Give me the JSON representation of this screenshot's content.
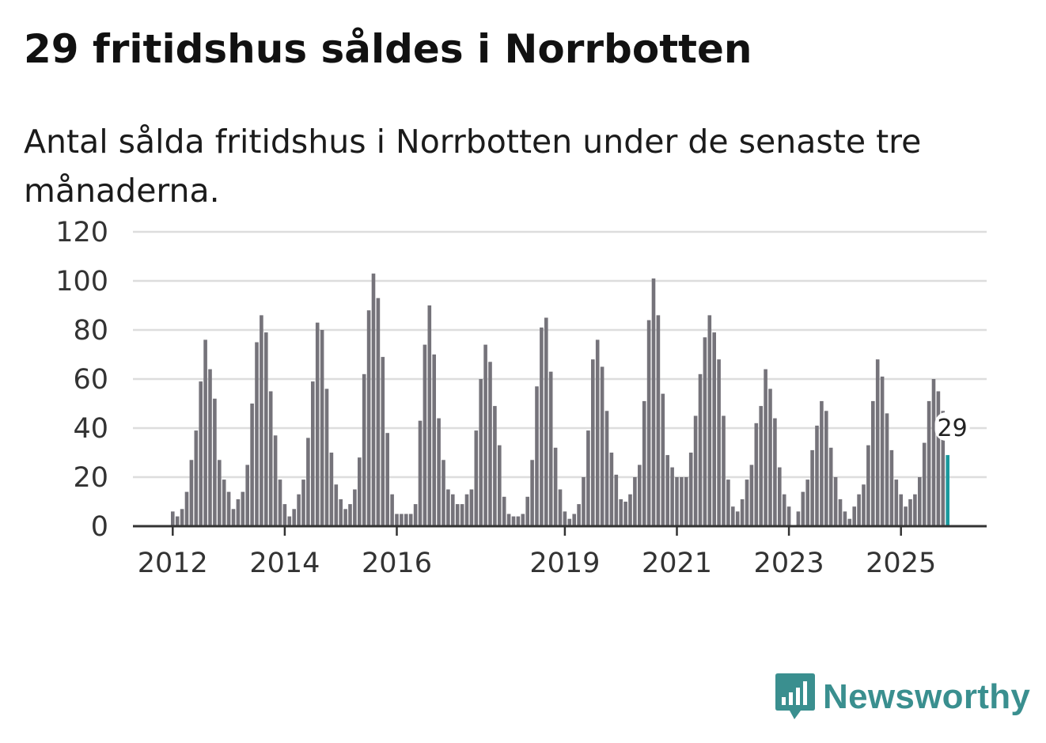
{
  "title": "29 fritidshus såldes i Norrbotten",
  "subtitle": "Antal sålda fritidshus i Norrbotten under de senaste tre månaderna.",
  "brand": {
    "name": "Newsworthy"
  },
  "colors": {
    "bar": "#75737a",
    "highlight": "#1a9a9e",
    "grid": "#dddddd",
    "axis": "#333333",
    "brand": "#3a8f8f"
  },
  "chart_data": {
    "type": "bar",
    "title": "29 fritidshus såldes i Norrbotten",
    "subtitle": "Antal sålda fritidshus i Norrbotten under de senaste tre månaderna.",
    "xlabel": "",
    "ylabel": "",
    "ylim": [
      0,
      120
    ],
    "y_ticks": [
      0,
      20,
      40,
      60,
      80,
      100,
      120
    ],
    "x_ticks": [
      {
        "label": "2012",
        "index": 0
      },
      {
        "label": "2014",
        "index": 24
      },
      {
        "label": "2016",
        "index": 48
      },
      {
        "label": "2019",
        "index": 84
      },
      {
        "label": "2021",
        "index": 108
      },
      {
        "label": "2023",
        "index": 132
      },
      {
        "label": "2025",
        "index": 156
      }
    ],
    "start": "2012-01",
    "frequency": "monthly",
    "grid": true,
    "series": [
      {
        "name": "Antal sålda fritidshus",
        "values": [
          6,
          4,
          7,
          14,
          27,
          39,
          59,
          76,
          64,
          52,
          27,
          19,
          14,
          7,
          11,
          14,
          25,
          50,
          75,
          86,
          79,
          55,
          37,
          19,
          9,
          4,
          7,
          13,
          19,
          36,
          59,
          83,
          80,
          56,
          30,
          17,
          11,
          7,
          9,
          15,
          28,
          62,
          88,
          103,
          93,
          69,
          38,
          13,
          5,
          5,
          5,
          5,
          9,
          43,
          74,
          90,
          70,
          44,
          27,
          15,
          13,
          9,
          9,
          13,
          15,
          39,
          60,
          74,
          67,
          49,
          33,
          12,
          5,
          4,
          4,
          5,
          12,
          27,
          57,
          81,
          85,
          63,
          32,
          15,
          6,
          3,
          5,
          9,
          20,
          39,
          68,
          76,
          65,
          47,
          30,
          21,
          11,
          10,
          13,
          20,
          25,
          51,
          84,
          101,
          86,
          54,
          29,
          24,
          20,
          20,
          20,
          30,
          45,
          62,
          77,
          86,
          79,
          68,
          45,
          19,
          8,
          6,
          11,
          19,
          25,
          42,
          49,
          64,
          56,
          44,
          24,
          13,
          8,
          0,
          6,
          14,
          19,
          31,
          41,
          51,
          47,
          32,
          20,
          11,
          6,
          3,
          8,
          13,
          17,
          33,
          51,
          68,
          61,
          46,
          31,
          19,
          13,
          8,
          11,
          13,
          20,
          34,
          51,
          60,
          55,
          47,
          29
        ]
      }
    ],
    "highlight_last": true,
    "annotations": [
      {
        "label": "29",
        "value": 29,
        "index": 167
      }
    ]
  }
}
